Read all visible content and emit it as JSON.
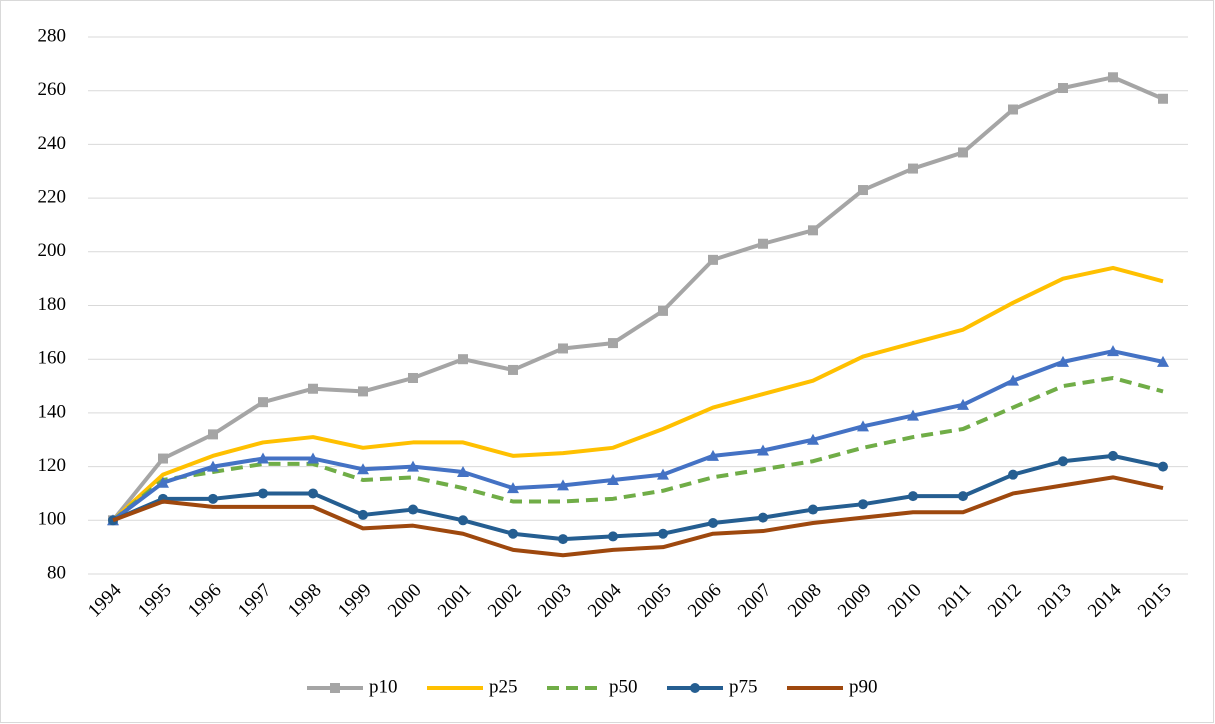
{
  "chart_data": {
    "type": "line",
    "categories": [
      "1994",
      "1995",
      "1996",
      "1997",
      "1998",
      "1999",
      "2000",
      "2001",
      "2002",
      "2003",
      "2004",
      "2005",
      "2006",
      "2007",
      "2008",
      "2009",
      "2010",
      "2011",
      "2012",
      "2013",
      "2014",
      "2015"
    ],
    "ylim": [
      80,
      280
    ],
    "yticks": [
      80,
      100,
      120,
      140,
      160,
      180,
      200,
      220,
      240,
      260,
      280
    ],
    "grid": true,
    "legend": "bottom",
    "series": [
      {
        "name": "p10",
        "color": "#a5a5a5",
        "marker": "square",
        "dash": false,
        "values": [
          100,
          123,
          132,
          144,
          149,
          148,
          153,
          160,
          156,
          164,
          166,
          178,
          197,
          203,
          208,
          223,
          231,
          237,
          253,
          261,
          265,
          257
        ]
      },
      {
        "name": "p25",
        "color": "#ffc000",
        "marker": "none",
        "dash": false,
        "values": [
          100,
          117,
          124,
          129,
          131,
          127,
          129,
          129,
          124,
          125,
          127,
          134,
          142,
          147,
          152,
          161,
          166,
          171,
          181,
          190,
          194,
          189
        ]
      },
      {
        "name": "p50",
        "color": "#70ad47",
        "marker": "none",
        "dash": true,
        "values": [
          100,
          115,
          118,
          121,
          121,
          115,
          116,
          112,
          107,
          107,
          108,
          111,
          116,
          119,
          122,
          127,
          131,
          134,
          142,
          150,
          153,
          148
        ]
      },
      {
        "color": "#4472c4",
        "marker": "triangle",
        "dash": false,
        "values": [
          100,
          114,
          120,
          123,
          123,
          119,
          120,
          118,
          112,
          113,
          115,
          117,
          124,
          126,
          130,
          135,
          139,
          143,
          152,
          159,
          163,
          159
        ]
      },
      {
        "name": "p75",
        "color": "#255e91",
        "marker": "circle",
        "dash": false,
        "values": [
          100,
          108,
          108,
          110,
          110,
          102,
          104,
          100,
          95,
          93,
          94,
          95,
          99,
          101,
          104,
          106,
          109,
          109,
          117,
          122,
          124,
          120
        ]
      },
      {
        "name": "p90",
        "color": "#9e480e",
        "marker": "none",
        "dash": false,
        "values": [
          100,
          107,
          105,
          105,
          105,
          97,
          98,
          95,
          89,
          87,
          89,
          90,
          95,
          96,
          99,
          101,
          103,
          103,
          110,
          113,
          116,
          112
        ]
      }
    ]
  }
}
